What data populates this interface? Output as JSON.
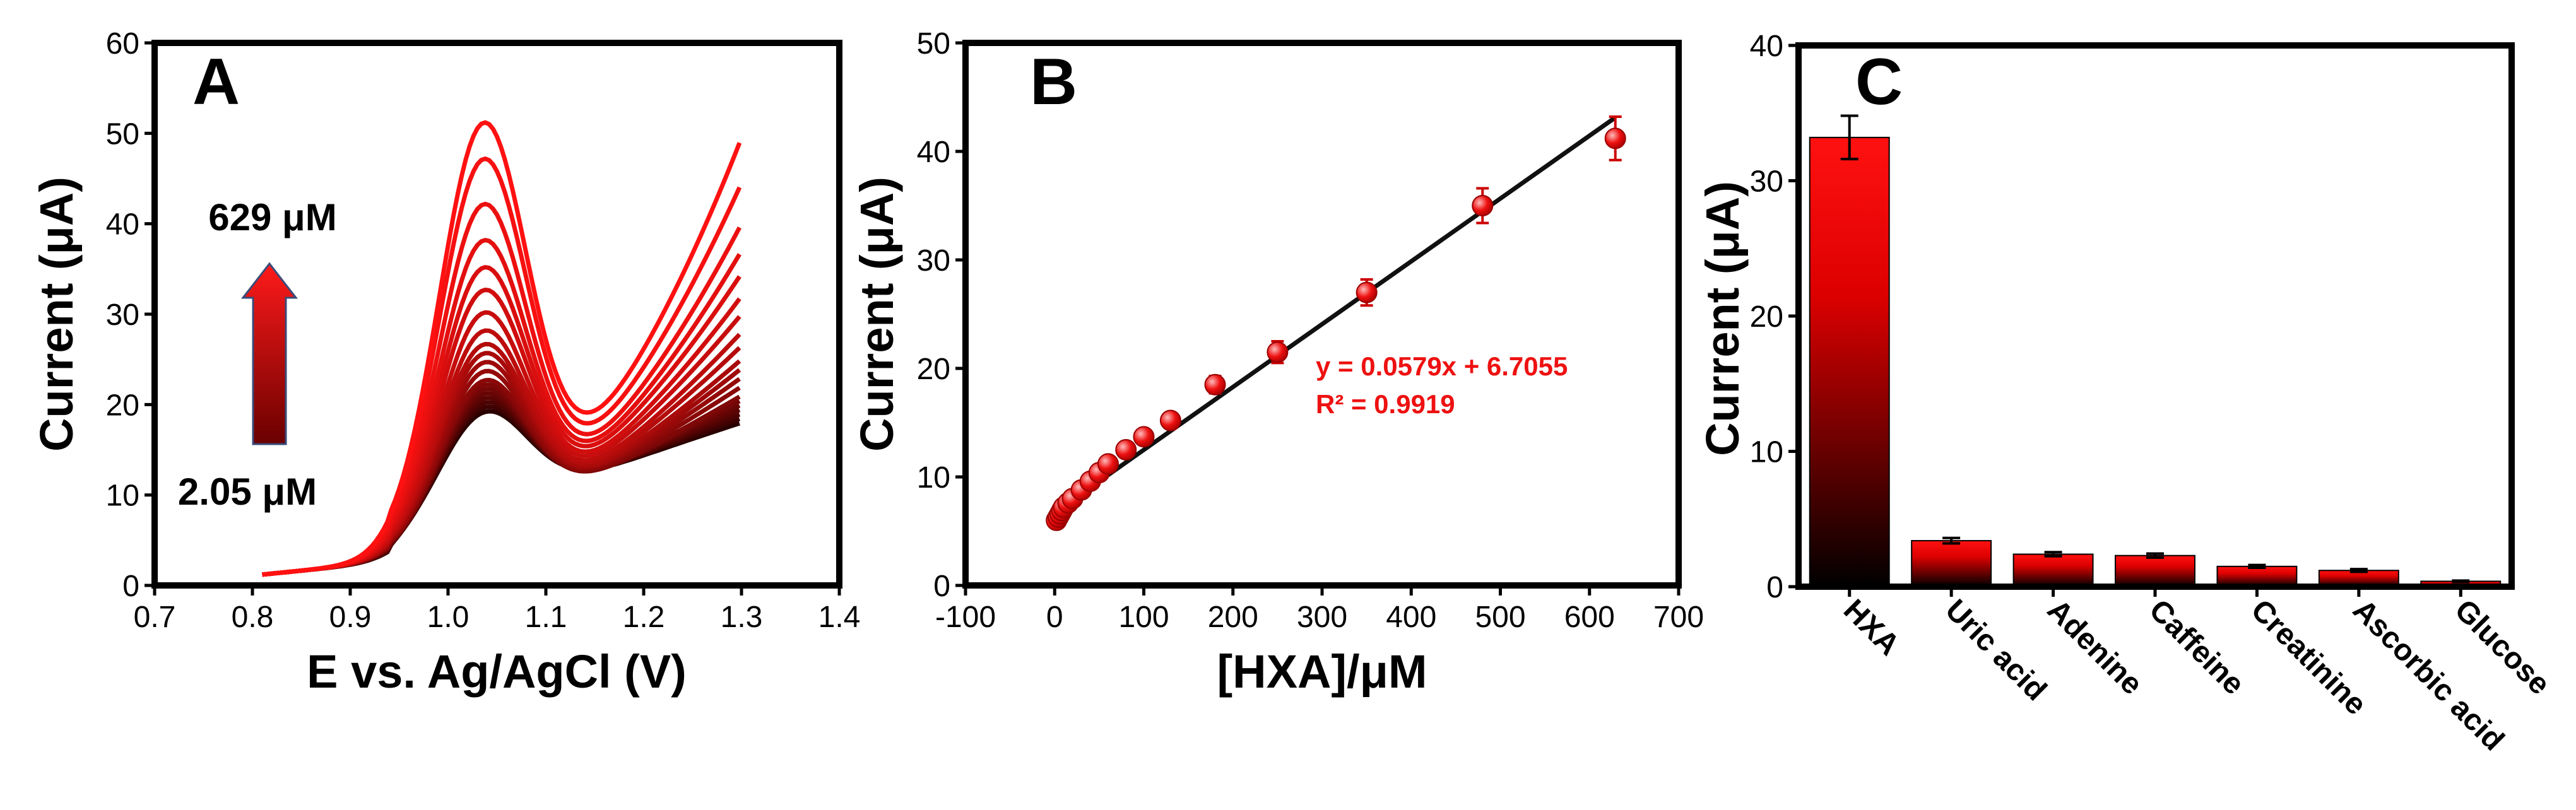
{
  "chart_data": [
    {
      "panel": "A",
      "type": "line",
      "xlabel": "E vs. Ag/AgCl (V)",
      "ylabel": "Current (μA)",
      "xlim": [
        0.7,
        1.4
      ],
      "ylim": [
        0,
        60
      ],
      "xticks": [
        0.7,
        0.8,
        0.9,
        1.0,
        1.1,
        1.2,
        1.3,
        1.4
      ],
      "yticks": [
        0,
        10,
        20,
        30,
        40,
        50,
        60
      ],
      "annotations": {
        "upper": "629 μM",
        "lower": "2.05 μM"
      },
      "series_peak_currents": [
        19,
        19.5,
        20,
        20.5,
        21,
        21.5,
        22,
        22.5,
        23.5,
        24.5,
        25.5,
        26.5,
        28,
        30,
        32.5,
        35,
        38,
        42,
        47,
        51
      ],
      "series_end_currents": [
        18,
        18.5,
        19,
        19.5,
        20,
        20.5,
        21,
        22,
        23,
        24,
        25,
        26.5,
        28,
        30,
        32,
        34.5,
        37,
        40,
        44.5,
        49.5
      ],
      "x_range_data": [
        0.81,
        1.3
      ],
      "colors": {
        "low": "#2a0000",
        "high": "#ff1111"
      }
    },
    {
      "panel": "B",
      "type": "scatter",
      "xlabel": "[HXA]/μM",
      "ylabel": "Current (μA)",
      "xlim": [
        -100,
        700
      ],
      "ylim": [
        0,
        50
      ],
      "xticks": [
        -100,
        0,
        100,
        200,
        300,
        400,
        500,
        600,
        700
      ],
      "yticks": [
        0,
        10,
        20,
        30,
        40,
        50
      ],
      "x": [
        2.05,
        4,
        6,
        8,
        10,
        15,
        20,
        30,
        40,
        50,
        60,
        80,
        100,
        130,
        180,
        250,
        350,
        480,
        629
      ],
      "y": [
        6.0,
        6.3,
        6.6,
        6.9,
        7.2,
        7.6,
        8.0,
        8.8,
        9.6,
        10.4,
        11.2,
        12.5,
        13.7,
        15.2,
        18.5,
        21.5,
        27.0,
        35.0,
        41.2
      ],
      "err": [
        0.3,
        0.3,
        0.3,
        0.3,
        0.3,
        0.3,
        0.3,
        0.4,
        0.4,
        0.4,
        0.4,
        0.5,
        0.5,
        0.6,
        0.8,
        1.0,
        1.2,
        1.6,
        2.0
      ],
      "fit": {
        "slope": 0.0579,
        "intercept": 6.7055,
        "x_range": [
          40,
          629
        ]
      },
      "equation": "y = 0.0579x + 6.7055",
      "r2": "R² = 0.9919",
      "colors": {
        "marker": "#ee1111",
        "fit": "#111111"
      }
    },
    {
      "panel": "C",
      "type": "bar",
      "xlabel": "",
      "ylabel": "Current (μA)",
      "ylim": [
        0,
        40
      ],
      "yticks": [
        0,
        10,
        20,
        30,
        40
      ],
      "categories": [
        "HXA",
        "Uric acid",
        "Adenine",
        "Caffeine",
        "Creatinine",
        "Ascorbic acid",
        "Glucose"
      ],
      "values": [
        33.2,
        3.4,
        2.4,
        2.3,
        1.5,
        1.2,
        0.4
      ],
      "err": [
        1.6,
        0.2,
        0.15,
        0.15,
        0.1,
        0.1,
        0.05
      ],
      "colors": {
        "top": "#ff1111",
        "bottom": "#000000"
      }
    }
  ]
}
